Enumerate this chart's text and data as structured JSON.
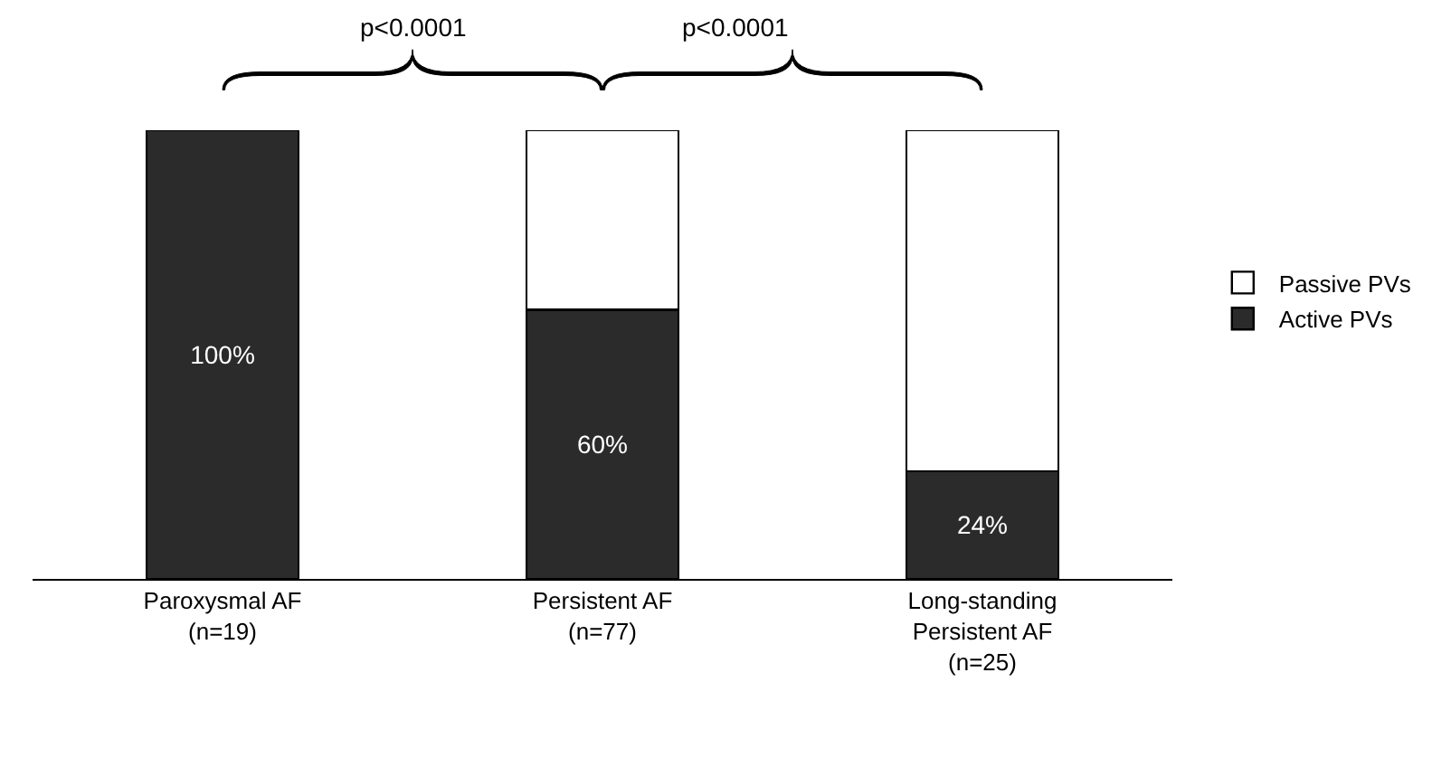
{
  "chart_data": {
    "type": "bar",
    "stacked": true,
    "categories": [
      "Paroxysmal AF\n(n=19)",
      "Persistent AF\n(n=77)",
      "Long-standing\nPersistent AF\n(n=25)"
    ],
    "series": [
      {
        "name": "Active PVs",
        "color": "#2b2b2b",
        "values": [
          100,
          60,
          24
        ],
        "value_labels": [
          "100%",
          "60%",
          "24%"
        ]
      },
      {
        "name": "Passive PVs",
        "color": "#ffffff",
        "values": [
          null,
          40,
          76
        ]
      }
    ],
    "ylim": [
      0,
      100
    ],
    "tick_labels": "x",
    "legend": "right",
    "annotations": [
      "p<0.0001",
      "p<0.0001"
    ]
  }
}
